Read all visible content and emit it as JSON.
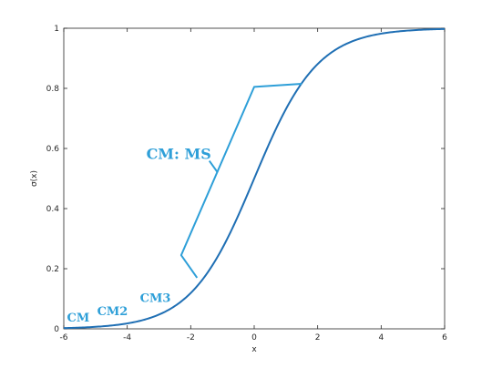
{
  "chart_data": {
    "type": "line",
    "title": "",
    "xlabel": "x",
    "ylabel": "σ(x)",
    "xlim": [
      -6,
      6
    ],
    "ylim": [
      0,
      1
    ],
    "xticks": [
      "-6",
      "-4",
      "-2",
      "0",
      "2",
      "4",
      "6"
    ],
    "yticks": [
      "0",
      "0.2",
      "0.4",
      "0.6",
      "0.8",
      "1"
    ],
    "grid": false,
    "legend": "none",
    "series": [
      {
        "kind": "sigmoid",
        "color": "#1f6fb4",
        "x": [
          -6,
          -5,
          -4,
          -3,
          -2,
          -1,
          0,
          1,
          2,
          3,
          4,
          5,
          6
        ],
        "y": [
          0.0025,
          0.0067,
          0.018,
          0.047,
          0.119,
          0.269,
          0.5,
          0.731,
          0.881,
          0.953,
          0.982,
          0.9933,
          0.9975
        ]
      },
      {
        "kind": "approximation",
        "color": "#2e9fd8",
        "x": [
          -1.8,
          -2.3,
          0.0,
          1.5
        ],
        "y": [
          0.17,
          0.245,
          0.805,
          0.815
        ]
      }
    ],
    "annotations": [
      {
        "text": "CM",
        "x": -5.9,
        "y": 0.025,
        "size": 13
      },
      {
        "text": "CM2",
        "x": -4.95,
        "y": 0.045,
        "size": 13
      },
      {
        "text": "CM3",
        "x": -3.6,
        "y": 0.09,
        "size": 13
      },
      {
        "text": "CM: MS",
        "x": -3.4,
        "y": 0.565,
        "size": 16,
        "pointer_to": [
          -1.15,
          0.52
        ]
      }
    ],
    "colors": {
      "axes": "#262626",
      "sigmoid": "#1f6fb4",
      "approximation": "#2e9fd8"
    }
  }
}
